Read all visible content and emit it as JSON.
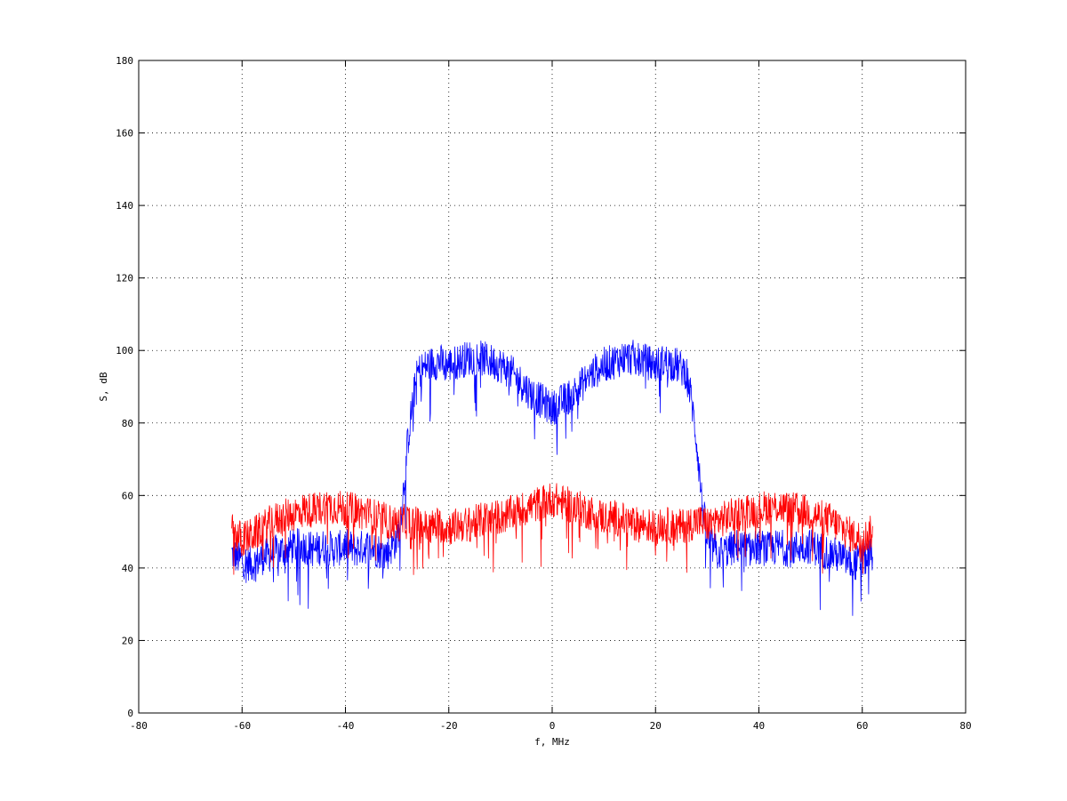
{
  "chart_data": {
    "type": "line",
    "title": "",
    "xlabel": "f, MHz",
    "ylabel": "S, dB",
    "xlim": [
      -80,
      80
    ],
    "ylim": [
      0,
      180
    ],
    "xticks": [
      -80,
      -60,
      -40,
      -20,
      0,
      20,
      40,
      60,
      80
    ],
    "yticks": [
      0,
      20,
      40,
      60,
      80,
      100,
      120,
      140,
      160,
      180
    ],
    "xtick_labels": [
      "-80",
      "-60",
      "-40",
      "-20",
      "0",
      "20",
      "40",
      "60",
      "80"
    ],
    "ytick_labels": [
      "0",
      "20",
      "40",
      "60",
      "80",
      "100",
      "120",
      "140",
      "160",
      "180"
    ],
    "grid": true,
    "grid_style": "dotted",
    "legend": "none",
    "series": [
      {
        "color": "#0000ff",
        "x": [
          -62,
          -60,
          -58,
          -56,
          -54,
          -52,
          -50,
          -48,
          -46,
          -44,
          -42,
          -40,
          -38,
          -36,
          -34,
          -32,
          -30,
          -29,
          -28,
          -27,
          -26,
          -24,
          -22,
          -20,
          -18,
          -16,
          -14,
          -12,
          -10,
          -8,
          -6,
          -4,
          -2,
          0,
          2,
          4,
          6,
          8,
          10,
          12,
          14,
          16,
          18,
          20,
          22,
          24,
          26,
          27,
          28,
          29,
          30,
          32,
          34,
          36,
          38,
          40,
          42,
          44,
          46,
          48,
          50,
          52,
          54,
          56,
          58,
          60,
          62
        ],
        "y": [
          44,
          42,
          41,
          43,
          44,
          45,
          46,
          46,
          45,
          46,
          45,
          46,
          45,
          46,
          45,
          44,
          48,
          58,
          74,
          86,
          94,
          96,
          97,
          96,
          97,
          98,
          98,
          97,
          96,
          94,
          91,
          88,
          86,
          84,
          86,
          88,
          91,
          94,
          96,
          97,
          98,
          98,
          97,
          96,
          97,
          96,
          94,
          86,
          74,
          58,
          48,
          44,
          45,
          46,
          45,
          46,
          45,
          46,
          45,
          46,
          46,
          45,
          44,
          43,
          41,
          42,
          44
        ]
      },
      {
        "color": "#ff0000",
        "x": [
          -62,
          -60,
          -58,
          -56,
          -54,
          -52,
          -50,
          -48,
          -46,
          -44,
          -42,
          -40,
          -38,
          -36,
          -34,
          -32,
          -30,
          -28,
          -26,
          -24,
          -22,
          -20,
          -18,
          -16,
          -14,
          -12,
          -10,
          -8,
          -6,
          -4,
          -2,
          0,
          2,
          4,
          6,
          8,
          10,
          12,
          14,
          16,
          18,
          20,
          22,
          24,
          26,
          28,
          30,
          32,
          34,
          36,
          38,
          40,
          42,
          44,
          46,
          48,
          50,
          52,
          54,
          56,
          58,
          60,
          62
        ],
        "y": [
          50,
          48,
          49,
          51,
          53,
          54,
          55,
          56,
          56,
          57,
          57,
          56,
          56,
          55,
          54,
          53,
          52,
          53,
          52,
          51,
          52,
          51,
          52,
          52,
          53,
          54,
          54,
          55,
          56,
          57,
          58,
          59,
          58,
          57,
          56,
          55,
          54,
          54,
          53,
          52,
          52,
          51,
          52,
          51,
          52,
          53,
          52,
          53,
          54,
          55,
          56,
          56,
          57,
          57,
          56,
          56,
          55,
          54,
          53,
          51,
          49,
          48,
          50
        ]
      }
    ]
  }
}
